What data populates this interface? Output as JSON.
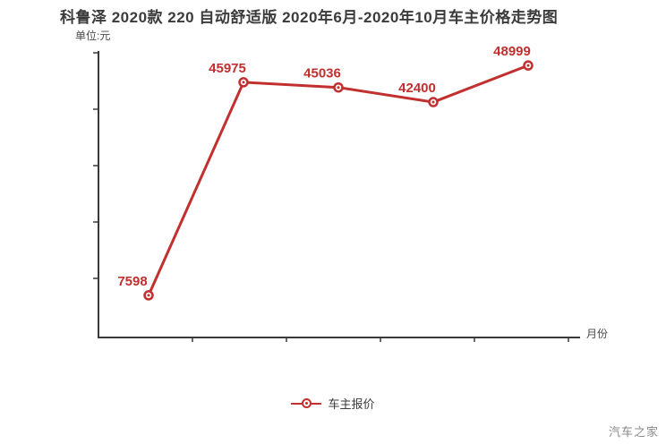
{
  "chart_data": {
    "type": "line",
    "title": "科鲁泽 2020款 220 自动舒适版 2020年6月-2020年10月车主价格走势图",
    "unit_label": "单位:元",
    "xlabel": "月份",
    "categories": [
      "2020-06",
      "2020-07",
      "2020-08",
      "2020-09",
      "2020-10"
    ],
    "series": [
      {
        "name": "车主报价",
        "values": [
          7598,
          45975,
          45036,
          42400,
          48999
        ],
        "color": "#c22f2f"
      }
    ],
    "data_labels": [
      "7598",
      "45975",
      "45036",
      "42400",
      "48999"
    ],
    "ylim": [
      0,
      51600
    ],
    "grid": false,
    "legend_position": "bottom",
    "x_tick_labels_visible": false,
    "y_tick_labels_visible": false
  },
  "watermark": "汽车之家",
  "colors": {
    "accent": "#c22f2f",
    "axis": "#3a3a3a",
    "title_text": "#3b3b3b",
    "muted_text": "#4a4a4a",
    "watermark_text": "#8a8a8a"
  }
}
